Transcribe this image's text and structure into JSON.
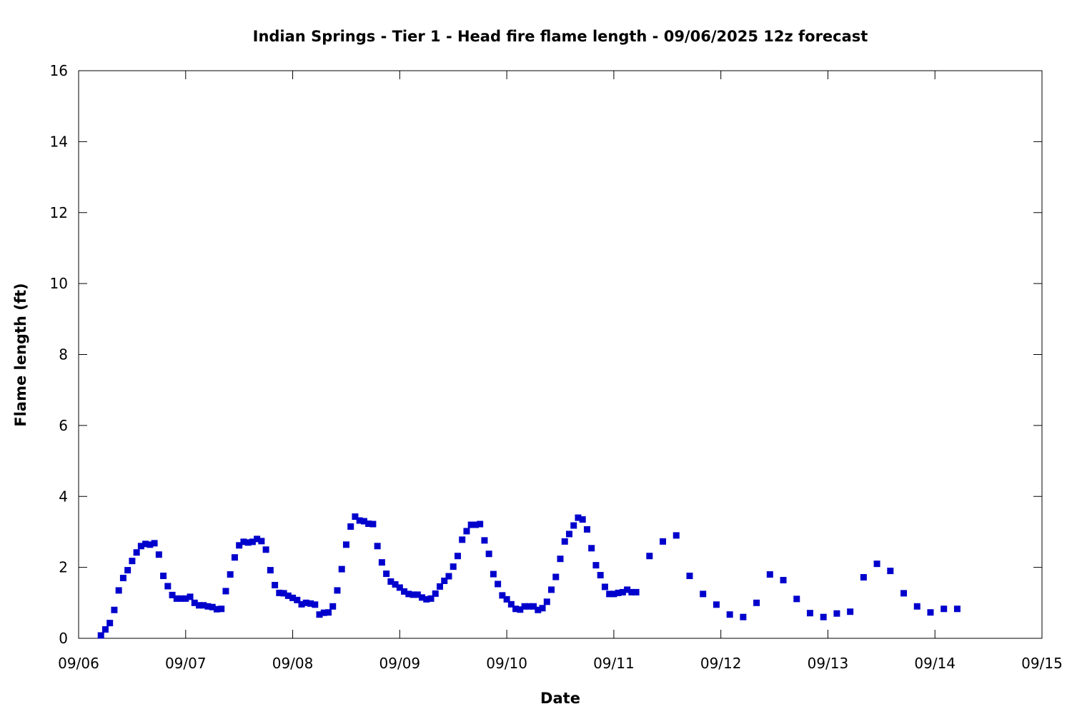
{
  "chart_data": {
    "type": "scatter",
    "title": "Indian Springs - Tier 1 - Head fire flame length - 09/06/2025 12z forecast",
    "xlabel": "Date",
    "ylabel": "Flame length (ft)",
    "ylim": [
      0,
      16
    ],
    "xlim_days": [
      "09/06",
      "09/15"
    ],
    "grid": false,
    "legend": "none",
    "marker_color": "#0000cc",
    "x_ticks": [
      "09/06",
      "09/07",
      "09/08",
      "09/09",
      "09/10",
      "09/11",
      "09/12",
      "09/13",
      "09/14",
      "09/15"
    ],
    "y_ticks": [
      "0",
      "2",
      "4",
      "6",
      "8",
      "10",
      "12",
      "14",
      "16"
    ],
    "series": [
      {
        "x": [
          "09/06 05:00",
          "09/06 06:00",
          "09/06 07:00",
          "09/06 08:00",
          "09/06 09:00",
          "09/06 10:00",
          "09/06 11:00",
          "09/06 12:00",
          "09/06 13:00",
          "09/06 14:00",
          "09/06 15:00",
          "09/06 16:00",
          "09/06 17:00",
          "09/06 18:00",
          "09/06 19:00",
          "09/06 20:00",
          "09/06 21:00",
          "09/06 22:00",
          "09/06 23:00",
          "09/07 00:00",
          "09/07 01:00",
          "09/07 02:00",
          "09/07 03:00",
          "09/07 04:00",
          "09/07 05:00",
          "09/07 06:00",
          "09/07 07:00",
          "09/07 08:00",
          "09/07 09:00",
          "09/07 10:00",
          "09/07 11:00",
          "09/07 12:00",
          "09/07 13:00",
          "09/07 14:00",
          "09/07 15:00",
          "09/07 16:00",
          "09/07 17:00",
          "09/07 18:00",
          "09/07 19:00",
          "09/07 20:00",
          "09/07 21:00",
          "09/07 22:00",
          "09/07 23:00",
          "09/08 00:00",
          "09/08 01:00",
          "09/08 02:00",
          "09/08 03:00",
          "09/08 04:00",
          "09/08 05:00",
          "09/08 06:00",
          "09/08 07:00",
          "09/08 08:00",
          "09/08 09:00",
          "09/08 10:00",
          "09/08 11:00",
          "09/08 12:00",
          "09/08 13:00",
          "09/08 14:00",
          "09/08 15:00",
          "09/08 16:00",
          "09/08 17:00",
          "09/08 18:00",
          "09/08 19:00",
          "09/08 20:00",
          "09/08 21:00",
          "09/08 22:00",
          "09/08 23:00",
          "09/09 00:00",
          "09/09 01:00",
          "09/09 02:00",
          "09/09 03:00",
          "09/09 04:00",
          "09/09 05:00",
          "09/09 06:00",
          "09/09 07:00",
          "09/09 08:00",
          "09/09 09:00",
          "09/09 10:00",
          "09/09 11:00",
          "09/09 12:00",
          "09/09 13:00",
          "09/09 14:00",
          "09/09 15:00",
          "09/09 16:00",
          "09/09 17:00",
          "09/09 18:00",
          "09/09 19:00",
          "09/09 20:00",
          "09/09 21:00",
          "09/09 22:00",
          "09/09 23:00",
          "09/10 00:00",
          "09/10 01:00",
          "09/10 02:00",
          "09/10 03:00",
          "09/10 04:00",
          "09/10 05:00",
          "09/10 06:00",
          "09/10 07:00",
          "09/10 08:00",
          "09/10 09:00",
          "09/10 10:00",
          "09/10 11:00",
          "09/10 12:00",
          "09/10 13:00",
          "09/10 14:00",
          "09/10 15:00",
          "09/10 16:00",
          "09/10 17:00",
          "09/10 18:00",
          "09/10 19:00",
          "09/10 20:00",
          "09/10 21:00",
          "09/10 22:00",
          "09/10 23:00",
          "09/11 00:00",
          "09/11 01:00",
          "09/11 02:00",
          "09/11 03:00",
          "09/11 04:00",
          "09/11 05:00",
          "09/11 08:00",
          "09/11 11:00",
          "09/11 14:00",
          "09/11 17:00",
          "09/11 20:00",
          "09/11 23:00",
          "09/12 02:00",
          "09/12 05:00",
          "09/12 08:00",
          "09/12 11:00",
          "09/12 14:00",
          "09/12 17:00",
          "09/12 20:00",
          "09/12 23:00",
          "09/13 02:00",
          "09/13 05:00",
          "09/13 08:00",
          "09/13 11:00",
          "09/13 14:00",
          "09/13 17:00",
          "09/13 20:00",
          "09/13 23:00",
          "09/14 02:00",
          "09/14 05:00"
        ],
        "y": [
          0.08,
          0.25,
          0.43,
          0.8,
          1.35,
          1.7,
          1.92,
          2.18,
          2.42,
          2.6,
          2.66,
          2.64,
          2.68,
          2.36,
          1.76,
          1.47,
          1.22,
          1.12,
          1.12,
          1.12,
          1.17,
          1.0,
          0.93,
          0.93,
          0.9,
          0.88,
          0.82,
          0.83,
          1.33,
          1.8,
          2.28,
          2.62,
          2.72,
          2.7,
          2.72,
          2.8,
          2.74,
          2.5,
          1.92,
          1.5,
          1.28,
          1.27,
          1.2,
          1.14,
          1.08,
          0.96,
          1.0,
          0.98,
          0.95,
          0.67,
          0.72,
          0.73,
          0.9,
          1.35,
          1.95,
          2.64,
          3.15,
          3.43,
          3.32,
          3.3,
          3.23,
          3.22,
          2.6,
          2.14,
          1.82,
          1.6,
          1.52,
          1.43,
          1.32,
          1.25,
          1.23,
          1.23,
          1.15,
          1.1,
          1.12,
          1.26,
          1.46,
          1.62,
          1.75,
          2.02,
          2.32,
          2.78,
          3.02,
          3.2,
          3.2,
          3.22,
          2.76,
          2.38,
          1.81,
          1.53,
          1.21,
          1.1,
          0.96,
          0.83,
          0.81,
          0.9,
          0.9,
          0.9,
          0.8,
          0.85,
          1.03,
          1.37,
          1.73,
          2.24,
          2.73,
          2.94,
          3.18,
          3.4,
          3.35,
          3.07,
          2.54,
          2.06,
          1.78,
          1.45,
          1.25,
          1.25,
          1.28,
          1.3,
          1.37,
          1.3,
          1.3,
          2.32,
          2.73,
          2.9,
          1.76,
          1.25,
          0.95,
          0.67,
          0.6,
          1.0,
          1.8,
          1.64,
          1.11,
          0.71,
          0.6,
          0.7,
          0.75,
          1.72,
          2.1,
          1.9,
          1.27,
          0.9,
          0.73,
          0.83,
          0.83
        ]
      }
    ]
  }
}
